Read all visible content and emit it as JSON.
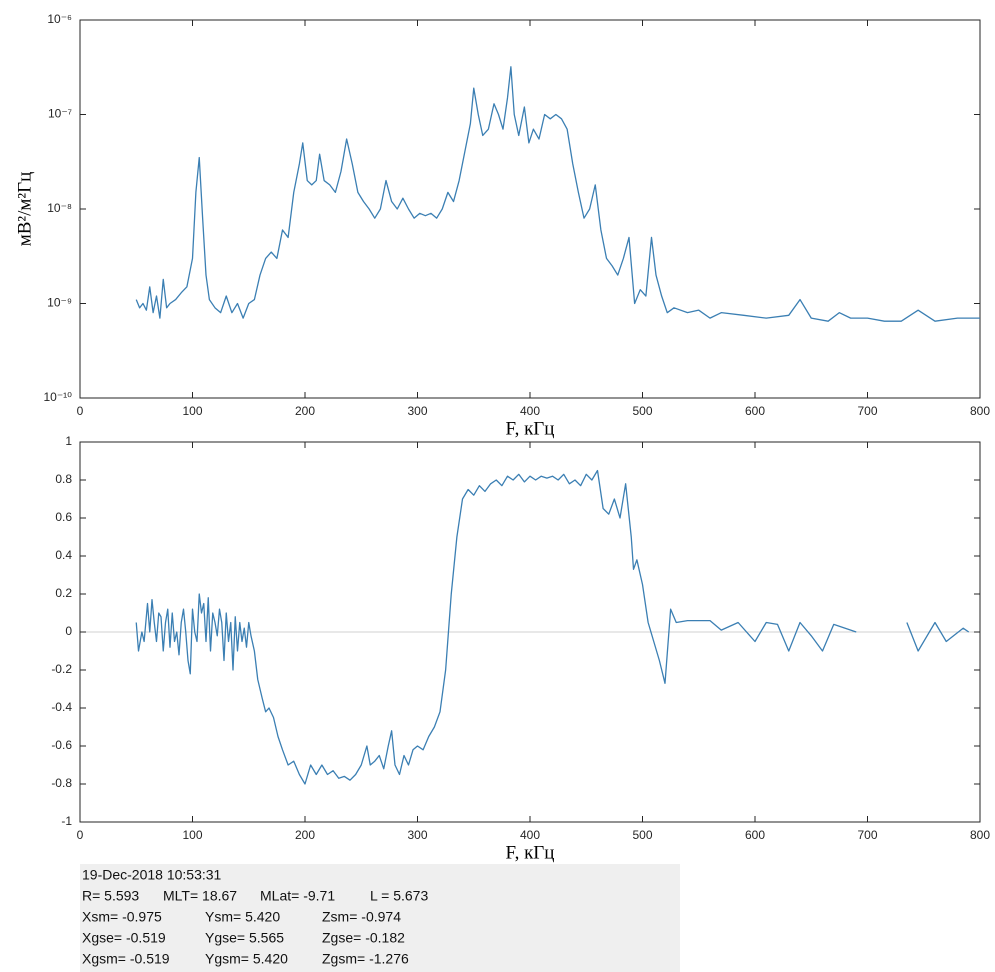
{
  "chart_data": [
    {
      "type": "line",
      "yscale": "log",
      "ylabel": "мВ²/м²Гц",
      "xlabel": "F, кГц",
      "xlim": [
        0,
        800
      ],
      "xticks": [
        0,
        100,
        200,
        300,
        400,
        500,
        600,
        700,
        800
      ],
      "ylim": [
        1e-10,
        1e-06
      ],
      "yticks": [
        {
          "value": 1e-10,
          "label": "10⁻¹⁰"
        },
        {
          "value": 1e-09,
          "label": "10⁻⁹"
        },
        {
          "value": 1e-08,
          "label": "10⁻⁸"
        },
        {
          "value": 1e-07,
          "label": "10⁻⁷"
        },
        {
          "value": 1e-06,
          "label": "10⁻⁶"
        }
      ],
      "grid": false,
      "series": [
        {
          "color": "#3b7fb3",
          "x": [
            50,
            53,
            56,
            59,
            62,
            65,
            68,
            71,
            74,
            77,
            80,
            85,
            90,
            95,
            100,
            103,
            106,
            109,
            112,
            115,
            120,
            125,
            130,
            135,
            140,
            145,
            150,
            155,
            160,
            165,
            170,
            175,
            180,
            185,
            190,
            195,
            198,
            202,
            206,
            210,
            213,
            217,
            222,
            227,
            232,
            237,
            242,
            247,
            252,
            257,
            262,
            267,
            272,
            277,
            282,
            287,
            292,
            297,
            302,
            307,
            312,
            317,
            322,
            327,
            332,
            337,
            342,
            347,
            350,
            354,
            358,
            363,
            368,
            372,
            376,
            380,
            383,
            386,
            390,
            395,
            399,
            403,
            408,
            413,
            418,
            423,
            428,
            433,
            438,
            443,
            448,
            453,
            458,
            463,
            468,
            473,
            478,
            483,
            488,
            493,
            498,
            503,
            508,
            512,
            517,
            522,
            528,
            540,
            550,
            560,
            570,
            590,
            610,
            630,
            640,
            650,
            665,
            675,
            685,
            700,
            715,
            730,
            745,
            760,
            780,
            800
          ],
          "values": [
            1.1e-09,
            9e-10,
            1e-09,
            8.5e-10,
            1.5e-09,
            8e-10,
            1.2e-09,
            7e-10,
            1.8e-09,
            9e-10,
            1e-09,
            1.1e-09,
            1.3e-09,
            1.5e-09,
            3e-09,
            1.5e-08,
            3.5e-08,
            8e-09,
            2e-09,
            1.1e-09,
            9e-10,
            8e-10,
            1.2e-09,
            8e-10,
            1e-09,
            7e-10,
            1e-09,
            1.1e-09,
            2e-09,
            3e-09,
            3.5e-09,
            3e-09,
            6e-09,
            5e-09,
            1.5e-08,
            3e-08,
            5e-08,
            2e-08,
            1.8e-08,
            2e-08,
            3.8e-08,
            2e-08,
            1.8e-08,
            1.5e-08,
            2.5e-08,
            5.5e-08,
            3e-08,
            1.5e-08,
            1.2e-08,
            1e-08,
            8e-09,
            1e-08,
            2e-08,
            1.2e-08,
            1e-08,
            1.3e-08,
            1e-08,
            8e-09,
            9e-09,
            8.5e-09,
            9e-09,
            8e-09,
            1e-08,
            1.5e-08,
            1.2e-08,
            2e-08,
            4e-08,
            8e-08,
            1.9e-07,
            1e-07,
            6e-08,
            7e-08,
            1.3e-07,
            1e-07,
            7e-08,
            1.5e-07,
            3.2e-07,
            1e-07,
            6e-08,
            1.2e-07,
            5e-08,
            7e-08,
            5.5e-08,
            1e-07,
            9e-08,
            1e-07,
            9e-08,
            7e-08,
            3e-08,
            1.5e-08,
            8e-09,
            1e-08,
            1.8e-08,
            6e-09,
            3e-09,
            2.5e-09,
            2e-09,
            3e-09,
            5e-09,
            1e-09,
            1.4e-09,
            1.2e-09,
            5e-09,
            2e-09,
            1.2e-09,
            8e-10,
            9e-10,
            8e-10,
            8.5e-10,
            7e-10,
            8e-10,
            7.5e-10,
            7e-10,
            7.5e-10,
            1.1e-09,
            7e-10,
            6.5e-10,
            8e-10,
            7e-10,
            7e-10,
            6.5e-10,
            6.5e-10,
            8.5e-10,
            6.5e-10,
            7e-10,
            7e-10
          ]
        }
      ]
    },
    {
      "type": "line",
      "xlabel": "F, кГц",
      "zero_line": true,
      "xlim": [
        0,
        800
      ],
      "xticks": [
        0,
        100,
        200,
        300,
        400,
        500,
        600,
        700,
        800
      ],
      "ylim": [
        -1,
        1
      ],
      "yticks": [
        -1,
        -0.8,
        -0.6,
        -0.4,
        -0.2,
        0,
        0.2,
        0.4,
        0.6,
        0.8,
        1
      ],
      "grid": false,
      "series": [
        {
          "color": "#3b7fb3",
          "x": [
            50,
            52,
            55,
            57,
            60,
            62,
            64,
            66,
            68,
            70,
            72,
            74,
            76,
            78,
            80,
            82,
            84,
            86,
            88,
            90,
            92,
            94,
            96,
            98,
            100,
            102,
            104,
            106,
            108,
            110,
            112,
            114,
            116,
            118,
            120,
            122,
            124,
            126,
            128,
            130,
            132,
            134,
            136,
            138,
            140,
            142,
            144,
            146,
            148,
            150,
            152,
            155,
            158,
            162,
            165,
            168,
            172,
            176,
            180,
            185,
            190,
            195,
            200,
            205,
            210,
            215,
            220,
            225,
            230,
            235,
            240,
            245,
            250,
            255,
            258,
            262,
            266,
            270,
            274,
            277,
            280,
            284,
            288,
            292,
            296,
            300,
            305,
            310,
            315,
            320,
            325,
            330,
            335,
            340,
            345,
            350,
            355,
            360,
            365,
            370,
            375,
            380,
            385,
            390,
            395,
            400,
            405,
            410,
            415,
            420,
            425,
            430,
            435,
            440,
            445,
            450,
            455,
            460,
            465,
            470,
            475,
            480,
            485,
            490,
            492,
            495,
            500,
            505,
            510,
            515,
            520,
            525,
            530,
            540,
            550,
            560,
            570,
            585,
            600,
            610,
            620,
            630,
            640,
            650,
            660,
            670,
            690,
            710,
            735,
            745,
            760,
            770,
            785,
            790
          ],
          "values": [
            0.05,
            -0.1,
            0,
            -0.05,
            0.15,
            0,
            0.17,
            0.05,
            -0.05,
            0.1,
            0.08,
            -0.1,
            0.05,
            0.12,
            -0.08,
            0.1,
            -0.05,
            0,
            -0.12,
            0.05,
            0.12,
            0,
            -0.15,
            -0.22,
            0.12,
            0,
            -0.05,
            0.2,
            0.1,
            0.15,
            -0.05,
            0.18,
            -0.1,
            0.1,
            0.05,
            -0.02,
            0.12,
            0.05,
            -0.15,
            0.1,
            -0.05,
            0.05,
            -0.2,
            0.08,
            -0.1,
            0.05,
            -0.05,
            0.02,
            -0.08,
            0.05,
            -0.02,
            -0.1,
            -0.25,
            -0.35,
            -0.42,
            -0.4,
            -0.45,
            -0.55,
            -0.62,
            -0.7,
            -0.68,
            -0.75,
            -0.8,
            -0.7,
            -0.75,
            -0.7,
            -0.75,
            -0.73,
            -0.77,
            -0.76,
            -0.78,
            -0.75,
            -0.7,
            -0.6,
            -0.7,
            -0.68,
            -0.65,
            -0.72,
            -0.6,
            -0.52,
            -0.7,
            -0.75,
            -0.65,
            -0.7,
            -0.62,
            -0.6,
            -0.62,
            -0.55,
            -0.5,
            -0.42,
            -0.2,
            0.2,
            0.5,
            0.7,
            0.75,
            0.72,
            0.77,
            0.74,
            0.78,
            0.8,
            0.77,
            0.82,
            0.8,
            0.83,
            0.79,
            0.82,
            0.8,
            0.82,
            0.81,
            0.82,
            0.8,
            0.83,
            0.78,
            0.8,
            0.77,
            0.83,
            0.8,
            0.85,
            0.65,
            0.62,
            0.7,
            0.6,
            0.78,
            0.5,
            0.33,
            0.38,
            0.25,
            0.05,
            -0.05,
            -0.15,
            -0.27,
            0.12,
            0.05,
            0.06,
            0.06,
            0.06,
            0.01,
            0.05,
            -0.05,
            0.05,
            0.04,
            -0.1,
            0.05,
            -0.02,
            -0.1,
            0.04,
            0,
            null,
            0.05,
            -0.1,
            0.05,
            -0.05,
            0.02,
            0
          ]
        }
      ]
    }
  ],
  "info_panel": {
    "rows": [
      [
        "19-Dec-2018 10:53:31"
      ],
      [
        "R= 5.593",
        "MLT= 18.67",
        "MLat= -9.71",
        "L = 5.673"
      ],
      [
        "Xsm= -0.975",
        "Ysm= 5.420",
        "Zsm= -0.974"
      ],
      [
        "Xgse= -0.519",
        "Ygse= 5.565",
        "Zgse= -0.182"
      ],
      [
        "Xgsm= -0.519",
        "Ygsm= 5.420",
        "Zgsm= -1.276"
      ]
    ]
  }
}
